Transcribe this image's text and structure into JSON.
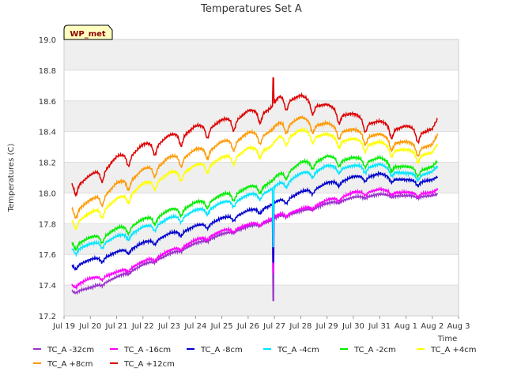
{
  "chart_data": {
    "type": "line",
    "title": "Temperatures Set A",
    "ylabel": "Temperatures (C)",
    "xlabel": "Time",
    "ylim": [
      17.2,
      19.0
    ],
    "yticks": [
      "17.2",
      "17.4",
      "17.6",
      "17.8",
      "18.0",
      "18.2",
      "18.4",
      "18.6",
      "18.8",
      "19.0"
    ],
    "xlim": [
      0,
      15
    ],
    "xticks": [
      "Jul 19",
      "Jul 20",
      "Jul 21",
      "Jul 22",
      "Jul 23",
      "Jul 24",
      "Jul 25",
      "Jul 26",
      "Jul 27",
      "Jul 28",
      "Jul 29",
      "Jul 30",
      "Jul 31",
      "Aug 1",
      "Aug 2",
      "Aug 3"
    ],
    "grid": true,
    "legend": "bottom",
    "watermark": "WP_met",
    "x": [
      0.3,
      1,
      2,
      3,
      4,
      5,
      6,
      7,
      7.9,
      8.2,
      9,
      10,
      11,
      12,
      13,
      14,
      14.2
    ],
    "series": [
      {
        "name": "TC_A -32cm",
        "color": "#9933cc",
        "values": [
          17.36,
          17.38,
          17.45,
          17.53,
          17.6,
          17.67,
          17.73,
          17.78,
          17.82,
          17.85,
          17.88,
          17.93,
          17.97,
          17.99,
          17.98,
          17.98,
          17.99
        ]
      },
      {
        "name": "TC_A -16cm",
        "color": "#ff00ff",
        "values": [
          17.4,
          17.44,
          17.48,
          17.55,
          17.62,
          17.69,
          17.75,
          17.79,
          17.83,
          17.86,
          17.89,
          17.95,
          18.0,
          18.02,
          18.0,
          18.0,
          18.02
        ]
      },
      {
        "name": "TC_A -8cm",
        "color": "#0000cc",
        "values": [
          17.53,
          17.56,
          17.61,
          17.67,
          17.73,
          17.78,
          17.83,
          17.88,
          17.92,
          17.95,
          18.0,
          18.06,
          18.1,
          18.12,
          18.08,
          18.08,
          18.1
        ]
      },
      {
        "name": "TC_A -4cm",
        "color": "#00e5ff",
        "values": [
          17.64,
          17.66,
          17.71,
          17.77,
          17.83,
          17.88,
          17.93,
          17.98,
          18.02,
          18.06,
          18.12,
          18.17,
          18.17,
          18.18,
          18.12,
          18.13,
          18.17
        ]
      },
      {
        "name": "TC_A -2cm",
        "color": "#00ee00",
        "values": [
          17.68,
          17.7,
          17.76,
          17.82,
          17.88,
          17.93,
          17.98,
          18.03,
          18.07,
          18.12,
          18.19,
          18.23,
          18.22,
          18.22,
          18.16,
          18.16,
          18.2
        ]
      },
      {
        "name": "TC_A +4cm",
        "color": "#ffff00",
        "values": [
          17.82,
          17.86,
          17.95,
          18.05,
          18.12,
          18.17,
          18.22,
          18.28,
          18.3,
          18.36,
          18.4,
          18.37,
          18.34,
          18.32,
          18.27,
          18.25,
          18.31
        ]
      },
      {
        "name": "TC_A +8cm",
        "color": "#ff9900",
        "values": [
          17.9,
          17.94,
          18.05,
          18.14,
          18.22,
          18.27,
          18.32,
          18.38,
          18.4,
          18.45,
          18.48,
          18.44,
          18.4,
          18.37,
          18.32,
          18.3,
          18.37
        ]
      },
      {
        "name": "TC_A +12cm",
        "color": "#dd0000",
        "values": [
          18.06,
          18.1,
          18.22,
          18.3,
          18.36,
          18.42,
          18.46,
          18.52,
          18.55,
          18.62,
          18.62,
          18.56,
          18.5,
          18.45,
          18.42,
          18.4,
          18.47
        ]
      }
    ]
  }
}
